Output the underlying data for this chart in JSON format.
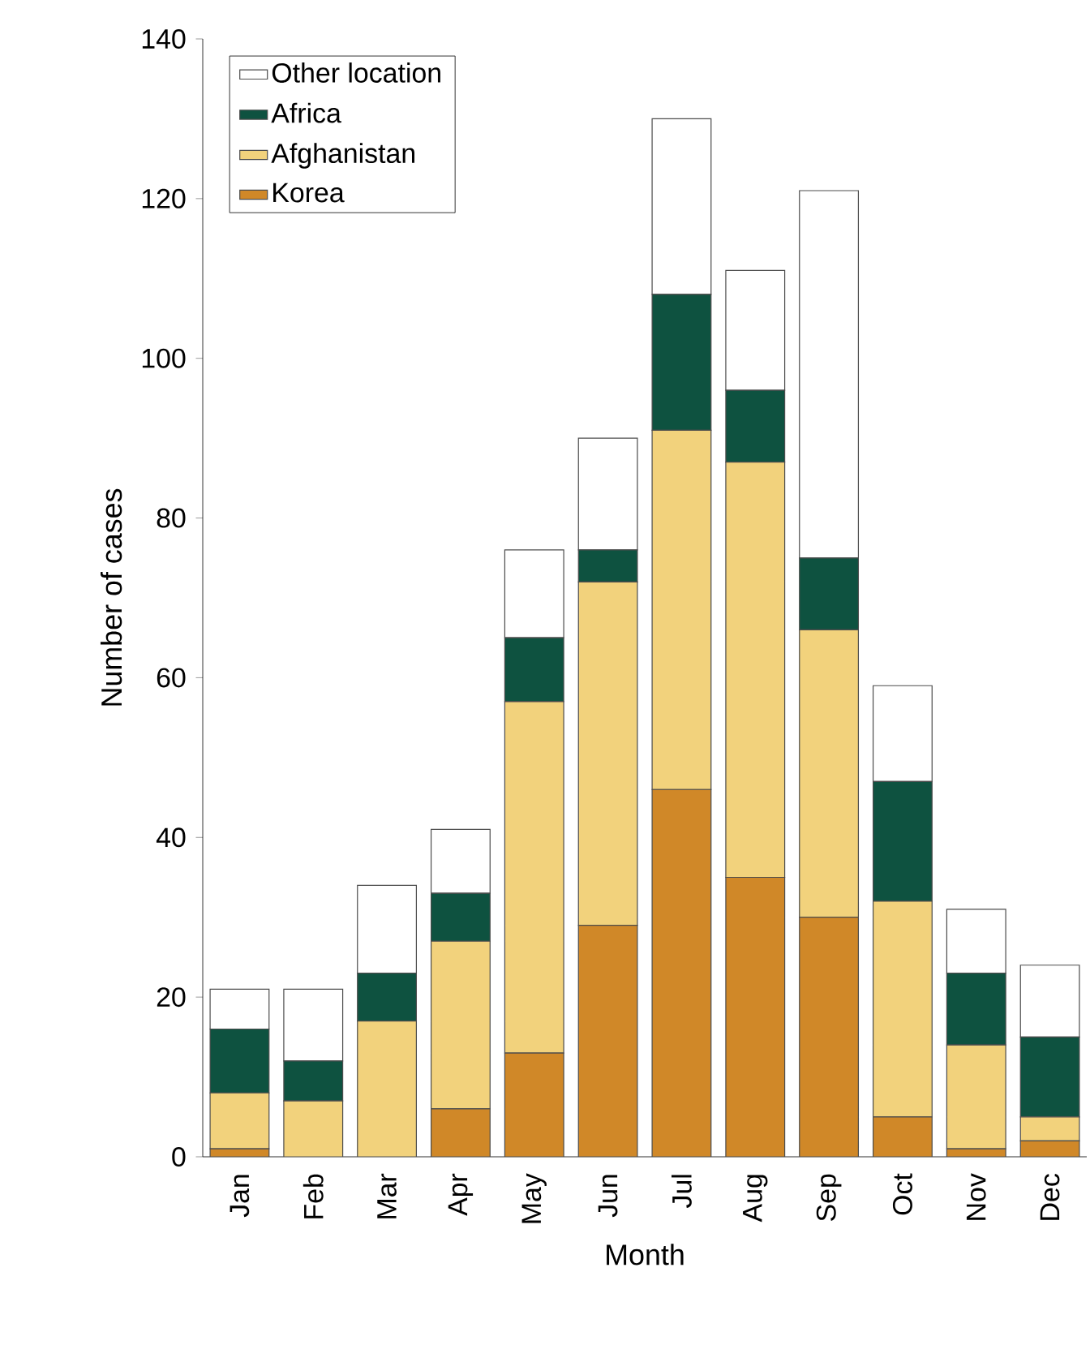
{
  "chart_data": {
    "type": "bar",
    "stacked": true,
    "xlabel": "Month",
    "ylabel": "Number of cases",
    "categories": [
      "Jan",
      "Feb",
      "Mar",
      "Apr",
      "May",
      "Jun",
      "Jul",
      "Aug",
      "Sep",
      "Oct",
      "Nov",
      "Dec"
    ],
    "series": [
      {
        "name": "Korea",
        "color": "#d08828",
        "values": [
          1,
          0,
          0,
          6,
          13,
          29,
          46,
          35,
          30,
          5,
          1,
          2
        ]
      },
      {
        "name": "Afghanistan",
        "color": "#f2d27c",
        "values": [
          7,
          7,
          17,
          21,
          44,
          43,
          45,
          52,
          36,
          27,
          13,
          3
        ]
      },
      {
        "name": "Africa",
        "color": "#0e5240",
        "values": [
          8,
          5,
          6,
          6,
          8,
          4,
          17,
          9,
          9,
          15,
          9,
          10
        ]
      },
      {
        "name": "Other location",
        "color": "#ffffff",
        "values": [
          5,
          9,
          11,
          8,
          11,
          14,
          22,
          15,
          46,
          12,
          8,
          9
        ]
      }
    ],
    "ylim": [
      0,
      140
    ],
    "yticks": [
      0,
      20,
      40,
      60,
      80,
      100,
      120,
      140
    ],
    "grid": false,
    "legend": "top left"
  }
}
